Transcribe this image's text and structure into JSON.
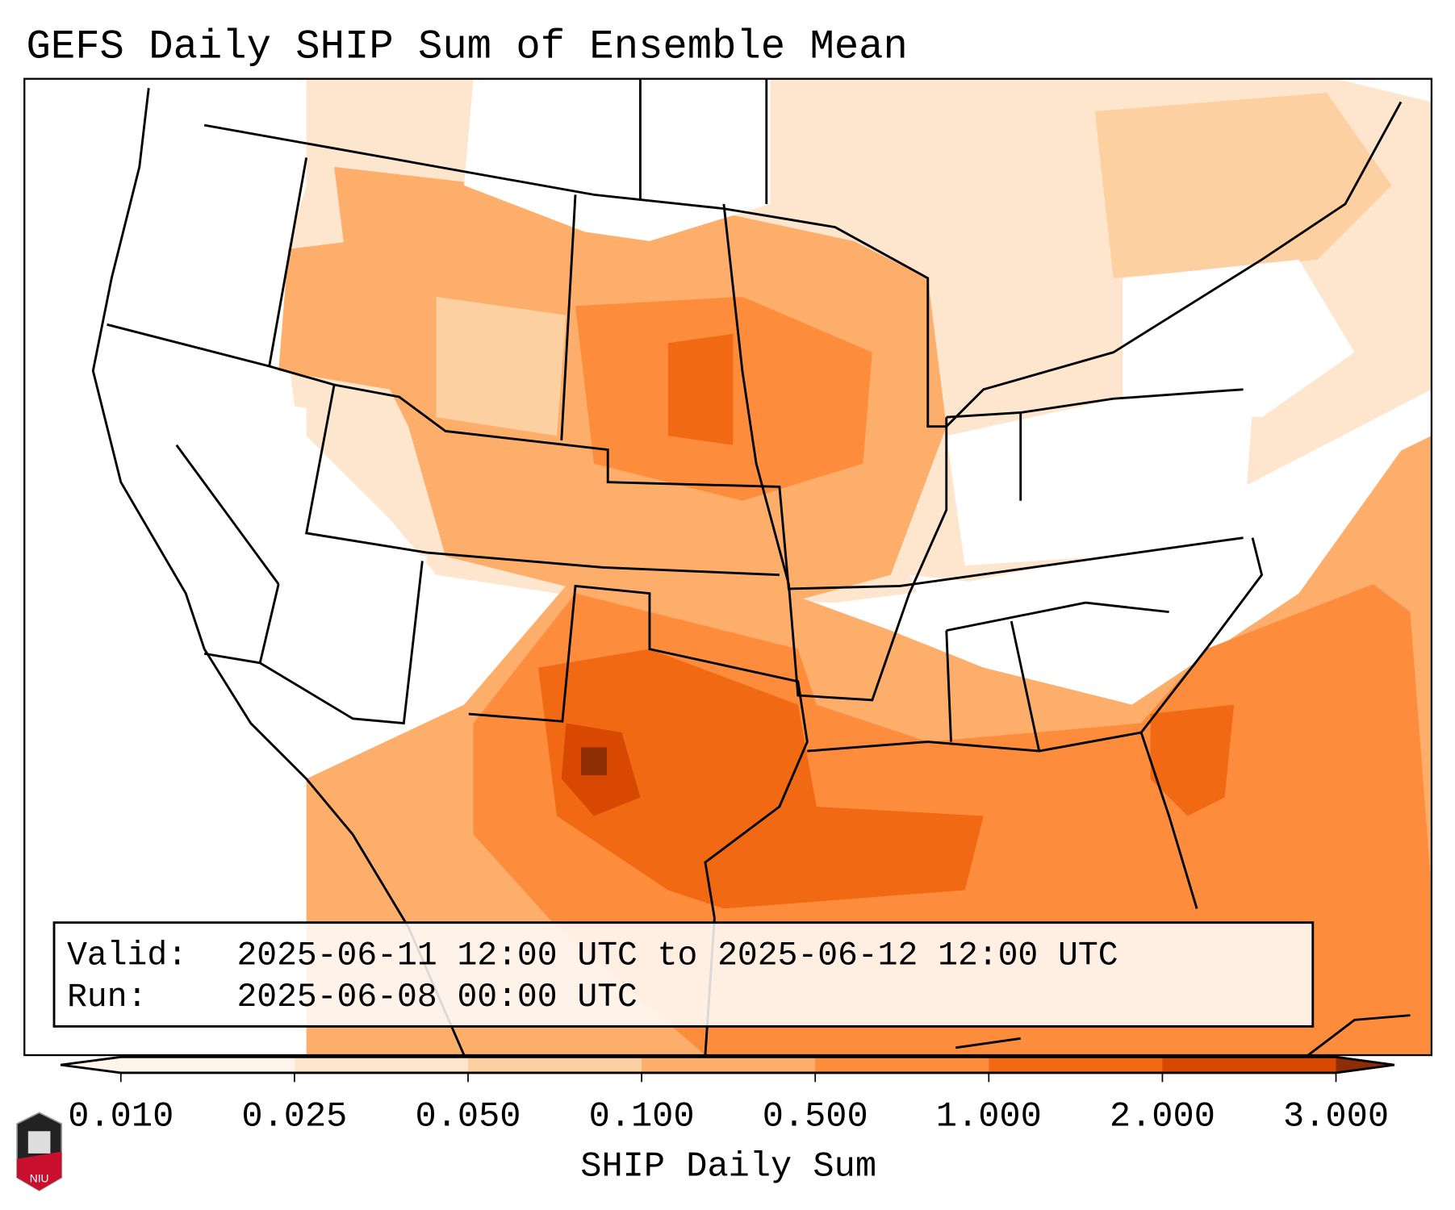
{
  "title": "GEFS Daily SHIP Sum of Ensemble Mean",
  "info": {
    "valid_label": "Valid:",
    "valid_value": "2025-06-11 12:00 UTC to 2025-06-12 12:00 UTC",
    "run_label": "Run:",
    "run_value": "2025-06-08 00:00 UTC"
  },
  "colorbar": {
    "label": "SHIP Daily Sum",
    "ticks": [
      "0.010",
      "0.025",
      "0.050",
      "0.100",
      "0.500",
      "1.000",
      "2.000",
      "3.000"
    ],
    "colors": [
      "#fff5eb",
      "#fee6ce",
      "#fdd0a2",
      "#fdae6b",
      "#fd8d3c",
      "#f16913",
      "#d94801",
      "#8c2d04"
    ]
  },
  "logo": {
    "text": "NIU"
  }
}
